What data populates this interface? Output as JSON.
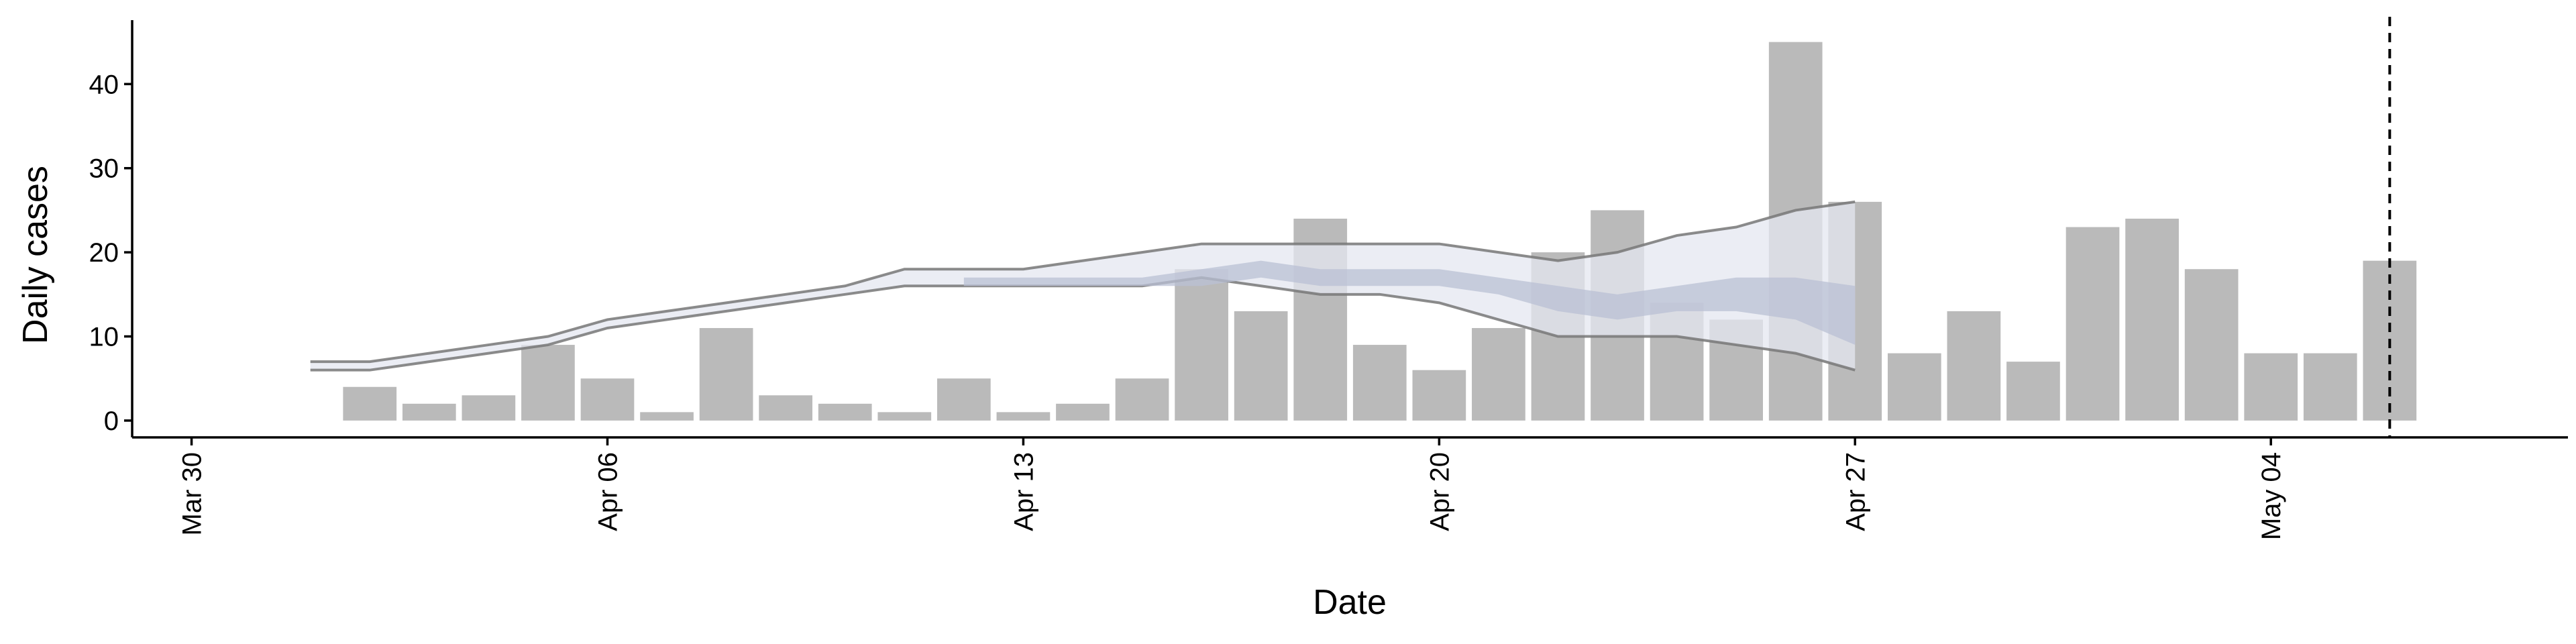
{
  "chart_data": {
    "type": "bar",
    "x_label": "Date",
    "y_label": "Daily cases",
    "x": [
      "Apr 02",
      "Apr 03",
      "Apr 04",
      "Apr 05",
      "Apr 06",
      "Apr 07",
      "Apr 08",
      "Apr 09",
      "Apr 10",
      "Apr 11",
      "Apr 12",
      "Apr 13",
      "Apr 14",
      "Apr 15",
      "Apr 16",
      "Apr 17",
      "Apr 18",
      "Apr 19",
      "Apr 20",
      "Apr 21",
      "Apr 22",
      "Apr 23",
      "Apr 24",
      "Apr 25",
      "Apr 26",
      "Apr 27",
      "Apr 28",
      "Apr 29",
      "Apr 30",
      "May 01",
      "May 02",
      "May 03",
      "May 04",
      "May 05",
      "May 06"
    ],
    "values": [
      4,
      2,
      3,
      9,
      5,
      1,
      11,
      3,
      2,
      1,
      5,
      1,
      2,
      5,
      18,
      13,
      24,
      9,
      6,
      11,
      20,
      25,
      14,
      12,
      45,
      26,
      8,
      13,
      7,
      23,
      24,
      18,
      8,
      8,
      19
    ],
    "color": "#bababa",
    "bands": [
      {
        "x": [
          "Apr 01",
          "Apr 02",
          "Apr 03",
          "Apr 04",
          "Apr 05",
          "Apr 06",
          "Apr 07",
          "Apr 08",
          "Apr 09",
          "Apr 10",
          "Apr 11",
          "Apr 12",
          "Apr 13",
          "Apr 14",
          "Apr 15",
          "Apr 16",
          "Apr 17",
          "Apr 18",
          "Apr 19",
          "Apr 20",
          "Apr 21",
          "Apr 22",
          "Apr 23",
          "Apr 24",
          "Apr 25",
          "Apr 26",
          "Apr 27"
        ],
        "upper": [
          7,
          7,
          8,
          9,
          10,
          12,
          13,
          14,
          15,
          16,
          18,
          18,
          18,
          19,
          20,
          21,
          21,
          21,
          21,
          21,
          20,
          19,
          20,
          22,
          23,
          25,
          26
        ],
        "lower": [
          6,
          6,
          7,
          8,
          9,
          11,
          12,
          13,
          14,
          15,
          16,
          16,
          16,
          16,
          16,
          17,
          16,
          15,
          15,
          14,
          12,
          10,
          10,
          10,
          9,
          8,
          6
        ],
        "color": "#e4e7f0",
        "line_color": "#777777"
      },
      {
        "x": [
          "Apr 12",
          "Apr 13",
          "Apr 14",
          "Apr 15",
          "Apr 16",
          "Apr 17",
          "Apr 18",
          "Apr 19",
          "Apr 20",
          "Apr 21",
          "Apr 22",
          "Apr 23",
          "Apr 24",
          "Apr 25",
          "Apr 26",
          "Apr 27"
        ],
        "upper": [
          17,
          17,
          17,
          17,
          18,
          19,
          18,
          18,
          18,
          17,
          16,
          15,
          16,
          17,
          17,
          16
        ],
        "lower": [
          16,
          16,
          16,
          16,
          16,
          17,
          16,
          16,
          16,
          15,
          13,
          12,
          13,
          13,
          12,
          9
        ],
        "color": "#b9c0d4"
      }
    ],
    "vline": "May 06",
    "xlim": [
      "Mar 29",
      "May 09"
    ],
    "xticks": [
      "Mar 30",
      "Apr 06",
      "Apr 13",
      "Apr 20",
      "Apr 27",
      "May 04"
    ],
    "ylim": [
      -2,
      47.6
    ],
    "yticks": [
      0,
      10,
      20,
      30,
      40
    ]
  }
}
